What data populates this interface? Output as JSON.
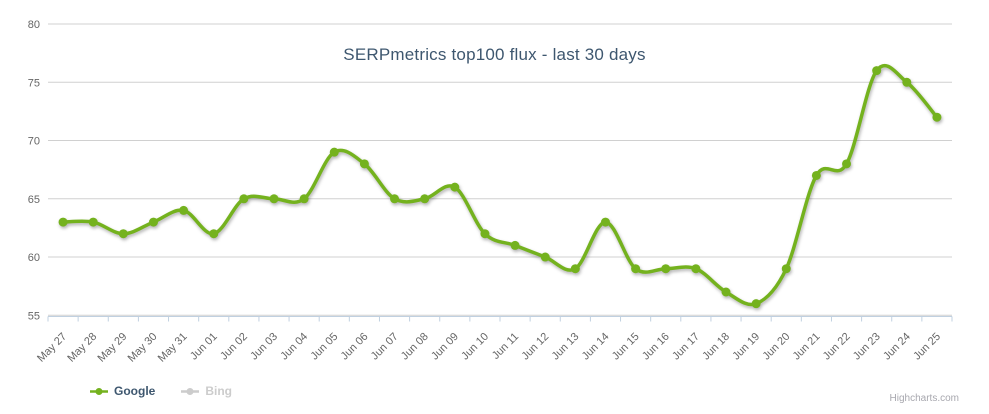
{
  "chart_data": {
    "type": "line",
    "title": "SERPmetrics top100 flux - last 30 days",
    "categories": [
      "May 27",
      "May 28",
      "May 29",
      "May 30",
      "May 31",
      "Jun 01",
      "Jun 02",
      "Jun 03",
      "Jun 04",
      "Jun 05",
      "Jun 06",
      "Jun 07",
      "Jun 08",
      "Jun 09",
      "Jun 10",
      "Jun 11",
      "Jun 12",
      "Jun 13",
      "Jun 14",
      "Jun 15",
      "Jun 16",
      "Jun 17",
      "Jun 18",
      "Jun 19",
      "Jun 20",
      "Jun 21",
      "Jun 22",
      "Jun 23",
      "Jun 24",
      "Jun 25"
    ],
    "series": [
      {
        "name": "Google",
        "color": "#74B21E",
        "visible": true,
        "values": [
          63,
          63,
          62,
          63,
          64,
          62,
          65,
          65,
          65,
          69,
          68,
          65,
          65,
          66,
          62,
          61,
          60,
          59,
          63,
          59,
          59,
          59,
          57,
          56,
          59,
          67,
          68,
          76,
          75,
          72
        ]
      },
      {
        "name": "Bing",
        "color": "#CCCCCC",
        "visible": false,
        "values": []
      }
    ],
    "ylim": [
      55,
      80
    ],
    "yticks": [
      55,
      60,
      65,
      70,
      75,
      80
    ],
    "grid": true,
    "legend_position": "bottom-left",
    "credits": "Highcharts.com"
  },
  "colors": {
    "title": "#3E576F",
    "axis_labels": "#666666",
    "gridline": "#D0D0D0",
    "axis_line": "#C0D0E0",
    "legend_active_text": "#3E576F",
    "legend_disabled": "#CCCCCC",
    "credits": "#A7A7AE",
    "background": "#FFFFFF"
  }
}
